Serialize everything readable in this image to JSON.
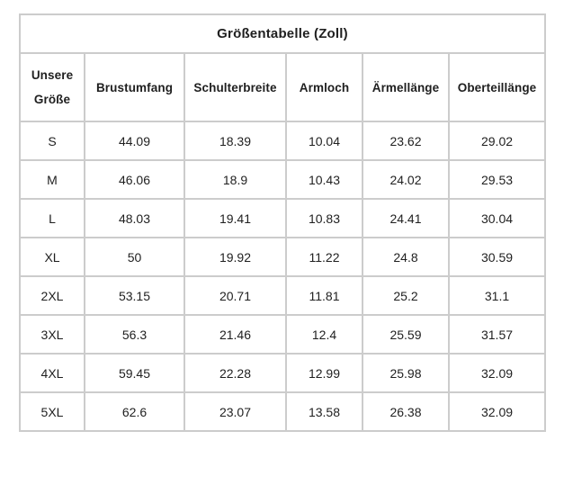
{
  "page": {
    "background": "#ffffff",
    "border_color": "#cccccc",
    "text_color": "#1f1f1f"
  },
  "table": {
    "title": "Größentabelle (Zoll)",
    "columns": [
      "Unsere Größe",
      "Brustumfang",
      "Schulterbreite",
      "Armloch",
      "Ärmellänge",
      "Oberteillänge"
    ],
    "rows": [
      [
        "S",
        "44.09",
        "18.39",
        "10.04",
        "23.62",
        "29.02"
      ],
      [
        "M",
        "46.06",
        "18.9",
        "10.43",
        "24.02",
        "29.53"
      ],
      [
        "L",
        "48.03",
        "19.41",
        "10.83",
        "24.41",
        "30.04"
      ],
      [
        "XL",
        "50",
        "19.92",
        "11.22",
        "24.8",
        "30.59"
      ],
      [
        "2XL",
        "53.15",
        "20.71",
        "11.81",
        "25.2",
        "31.1"
      ],
      [
        "3XL",
        "56.3",
        "21.46",
        "12.4",
        "25.59",
        "31.57"
      ],
      [
        "4XL",
        "59.45",
        "22.28",
        "12.99",
        "25.98",
        "32.09"
      ],
      [
        "5XL",
        "62.6",
        "23.07",
        "13.58",
        "26.38",
        "32.09"
      ]
    ]
  }
}
